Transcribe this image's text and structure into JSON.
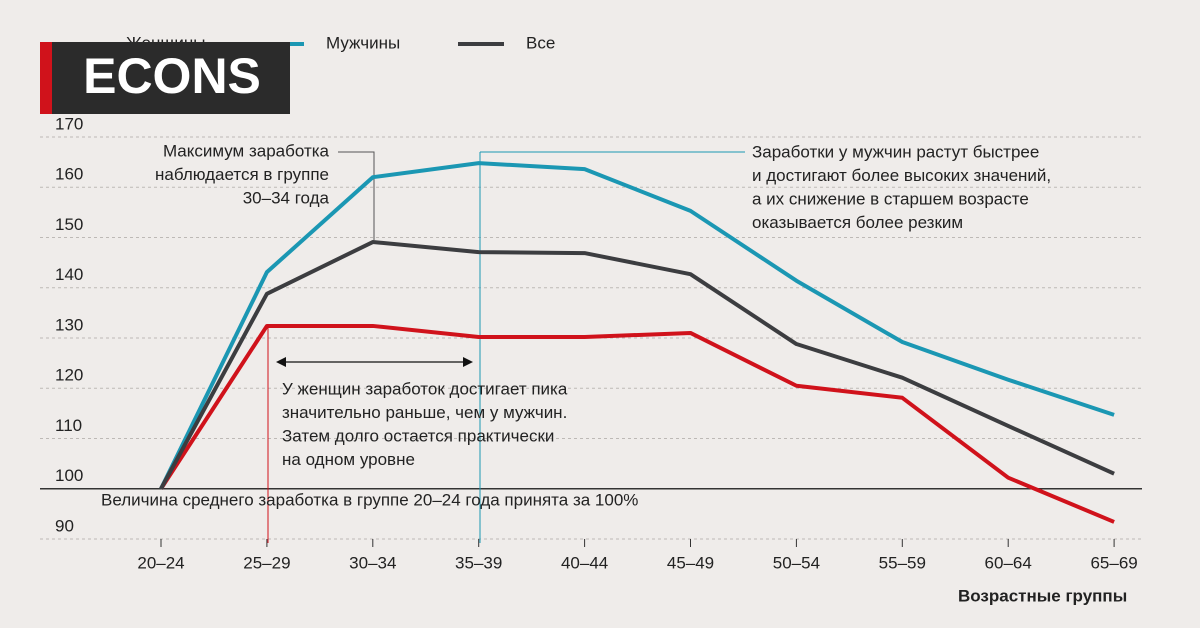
{
  "brand": "ECONS",
  "chart_data": {
    "type": "line",
    "categories": [
      "20–24",
      "25–29",
      "30–34",
      "35–39",
      "40–44",
      "45–49",
      "50–54",
      "55–59",
      "60–64",
      "65–69"
    ],
    "series": [
      {
        "name": "Женщины",
        "color": "#d0121b",
        "values": [
          100,
          132.4,
          132.4,
          130.2,
          130.2,
          131,
          120.5,
          118.1,
          102.2,
          93.4
        ]
      },
      {
        "name": "Мужчины",
        "color": "#1b97b3",
        "values": [
          100,
          143.1,
          162,
          164.8,
          163.6,
          155.3,
          141.4,
          129.2,
          121.7,
          114.7
        ]
      },
      {
        "name": "Все",
        "color": "#3c3d40",
        "values": [
          100,
          138.8,
          149.1,
          147.1,
          146.9,
          142.7,
          128.8,
          122.1,
          112.5,
          103
        ]
      }
    ],
    "ylim": [
      90,
      170
    ],
    "yticks": [
      90,
      100,
      110,
      120,
      130,
      140,
      150,
      160,
      170
    ],
    "grid": true,
    "x_label": "Возрастные группы",
    "annotations": {
      "peak": [
        "Максимум заработка",
        "наблюдается в группе",
        "30–34 года"
      ],
      "men": [
        "Заработки у мужчин растут быстрее",
        "и достигают более высоких значений,",
        "а их снижение в старшем возрасте",
        "оказывается более резким"
      ],
      "women": [
        "У женщин заработок достигает пика",
        "значительно раньше, чем у мужчин.",
        "Затем долго остается практически",
        "на одном уровне"
      ],
      "base": "Величина среднего заработка в группе 20–24 года принята за 100%"
    }
  }
}
